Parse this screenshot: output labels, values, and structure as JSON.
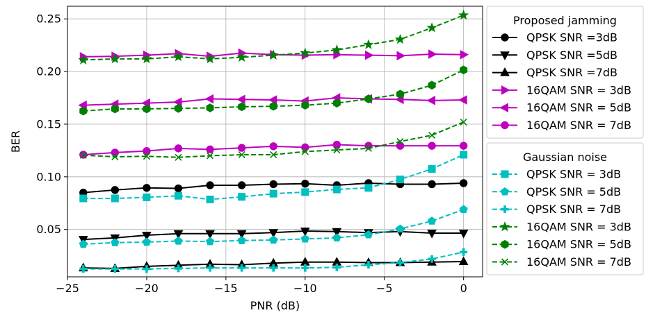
{
  "chart_data": {
    "type": "line",
    "title": "",
    "xlabel": "PNR (dB)",
    "ylabel": "BER",
    "xlim": [
      -25,
      1.2
    ],
    "ylim": [
      0.005,
      0.262
    ],
    "grid": true,
    "x_ticks": [
      -25,
      -20,
      -15,
      -10,
      -5,
      0
    ],
    "x_tick_labels": [
      "−25",
      "−20",
      "−15",
      "−10",
      "−5",
      "0"
    ],
    "y_ticks": [
      0.05,
      0.1,
      0.15,
      0.2,
      0.25
    ],
    "y_tick_labels": [
      "0.05",
      "0.10",
      "0.15",
      "0.20",
      "0.25"
    ],
    "x": [
      -24,
      -22,
      -20,
      -18,
      -16,
      -14,
      -12,
      -10,
      -8,
      -6,
      -4,
      -2,
      0
    ],
    "legend_groups": [
      {
        "title": "Proposed jamming",
        "series_indices": [
          0,
          1,
          2,
          3,
          4,
          5
        ]
      },
      {
        "title": "Gaussian noise",
        "series_indices": [
          6,
          7,
          8,
          9,
          10,
          11
        ]
      }
    ],
    "series": [
      {
        "name": "QPSK SNR =3dB",
        "color": "#000000",
        "marker": "circle",
        "dashed": false,
        "values": [
          0.085,
          0.0875,
          0.0895,
          0.089,
          0.092,
          0.092,
          0.093,
          0.0935,
          0.092,
          0.094,
          0.093,
          0.093,
          0.094
        ]
      },
      {
        "name": "QPSK SNR =5dB",
        "color": "#000000",
        "marker": "triangle-down",
        "dashed": false,
        "values": [
          0.0405,
          0.042,
          0.0445,
          0.046,
          0.046,
          0.046,
          0.047,
          0.0485,
          0.048,
          0.047,
          0.048,
          0.0465,
          0.0465
        ]
      },
      {
        "name": "QPSK SNR =7dB",
        "color": "#000000",
        "marker": "triangle-up",
        "dashed": false,
        "values": [
          0.0135,
          0.013,
          0.015,
          0.016,
          0.017,
          0.0165,
          0.018,
          0.019,
          0.019,
          0.0185,
          0.0185,
          0.019,
          0.0195
        ]
      },
      {
        "name": "16QAM SNR = 3dB",
        "color": "#bf00bf",
        "marker": "triangle-right",
        "dashed": false,
        "values": [
          0.214,
          0.2145,
          0.2155,
          0.217,
          0.2145,
          0.2175,
          0.216,
          0.2155,
          0.216,
          0.2155,
          0.215,
          0.2165,
          0.216
        ]
      },
      {
        "name": "16QAM SNR = 5dB",
        "color": "#bf00bf",
        "marker": "triangle-left",
        "dashed": false,
        "values": [
          0.168,
          0.169,
          0.17,
          0.171,
          0.174,
          0.1735,
          0.173,
          0.172,
          0.175,
          0.174,
          0.1735,
          0.1725,
          0.173
        ]
      },
      {
        "name": "16QAM SNR = 7dB",
        "color": "#bf00bf",
        "marker": "circle",
        "dashed": false,
        "values": [
          0.121,
          0.123,
          0.1245,
          0.127,
          0.126,
          0.1275,
          0.129,
          0.128,
          0.1305,
          0.1295,
          0.1295,
          0.1295,
          0.1295
        ]
      },
      {
        "name": "QPSK SNR = 3dB",
        "color": "#00bfbf",
        "marker": "square",
        "dashed": true,
        "values": [
          0.0795,
          0.0795,
          0.0805,
          0.082,
          0.0785,
          0.081,
          0.084,
          0.0855,
          0.088,
          0.0895,
          0.0975,
          0.1075,
          0.121
        ]
      },
      {
        "name": "QPSK SNR = 5dB",
        "color": "#00bfbf",
        "marker": "pentagon",
        "dashed": true,
        "values": [
          0.036,
          0.0375,
          0.038,
          0.039,
          0.0385,
          0.0395,
          0.04,
          0.041,
          0.042,
          0.045,
          0.0505,
          0.058,
          0.069
        ]
      },
      {
        "name": "QPSK SNR = 7dB",
        "color": "#00bfbf",
        "marker": "plus",
        "dashed": true,
        "values": [
          0.0125,
          0.0125,
          0.0125,
          0.013,
          0.0135,
          0.0135,
          0.0135,
          0.0135,
          0.014,
          0.0165,
          0.0185,
          0.022,
          0.0285
        ]
      },
      {
        "name": "16QAM SNR = 3dB",
        "color": "#008000",
        "marker": "star",
        "dashed": true,
        "values": [
          0.211,
          0.212,
          0.212,
          0.214,
          0.212,
          0.2135,
          0.2155,
          0.2175,
          0.2205,
          0.2255,
          0.2305,
          0.2415,
          0.2535
        ]
      },
      {
        "name": "16QAM SNR = 5dB",
        "color": "#008000",
        "marker": "hexagon",
        "dashed": true,
        "values": [
          0.1625,
          0.1645,
          0.1645,
          0.165,
          0.1655,
          0.1665,
          0.167,
          0.168,
          0.17,
          0.174,
          0.1785,
          0.187,
          0.2015
        ]
      },
      {
        "name": "16QAM SNR = 7dB",
        "color": "#008000",
        "marker": "x",
        "dashed": true,
        "values": [
          0.1205,
          0.119,
          0.1195,
          0.1185,
          0.12,
          0.121,
          0.121,
          0.124,
          0.1255,
          0.127,
          0.1335,
          0.1395,
          0.152
        ]
      }
    ]
  }
}
